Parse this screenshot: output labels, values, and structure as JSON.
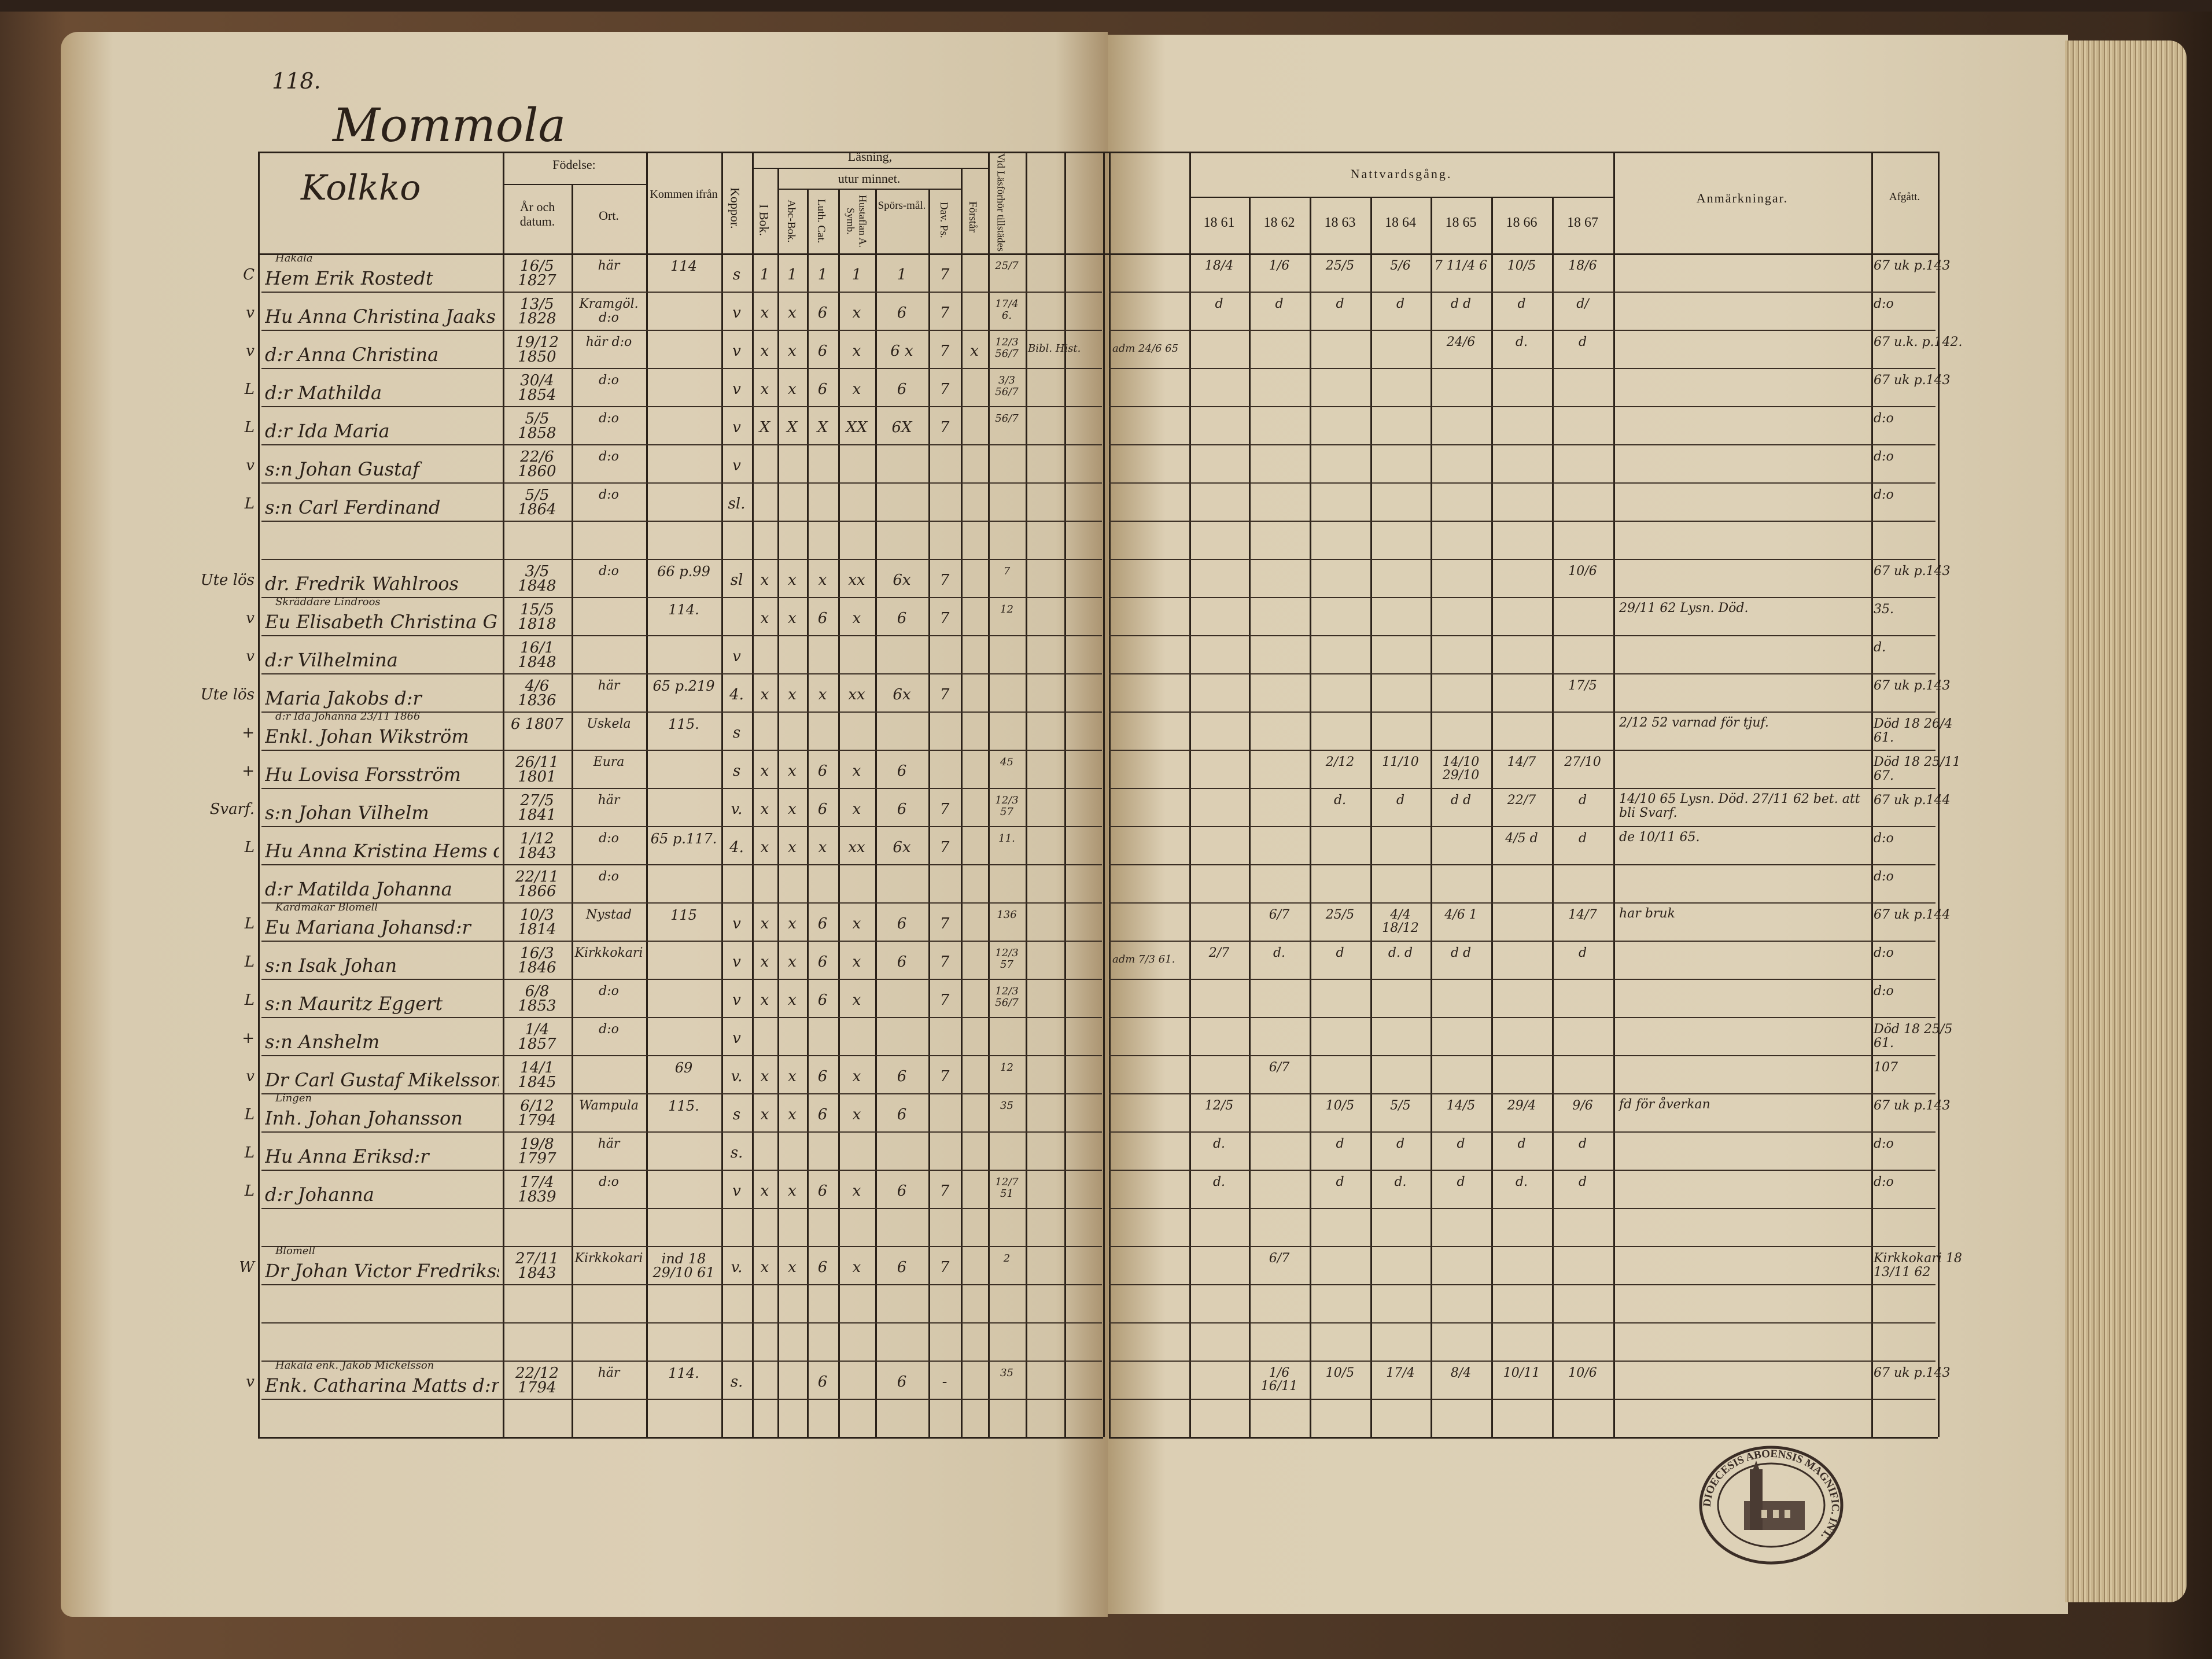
{
  "page_number": "118.",
  "village": "Mommola",
  "household": "Kolkko",
  "header": {
    "fodelse": "Födelse:",
    "ar": "År och datum.",
    "ort": "Ort.",
    "kommen": "Kommen ifrån",
    "koppor": "Koppor.",
    "lasning": "Läsning,",
    "utur": "utur minnet.",
    "ibok": "I Bok.",
    "abc": "Abc-Bok.",
    "luth": "Luth. Cat.",
    "hust": "Hustaflan A. Symb.",
    "spors": "Spörs-mål.",
    "dav": "Dav. Ps.",
    "forstar": "Förstår",
    "vid": "Vid Läsförhör tillstädes",
    "natt": "Nattvardsgång.",
    "years": [
      "18 61",
      "18 62",
      "18 63",
      "18 64",
      "18 65",
      "18 66",
      "18 67"
    ],
    "anm": "Anmärkningar.",
    "afg": "Afgått."
  },
  "rows": [
    {
      "margin": "C",
      "note": "Hakala",
      "name": "Hem Erik Rostedt",
      "born": "16/5 1827",
      "ort": "här",
      "from": "114",
      "r": [
        "s",
        "1",
        "1",
        "1",
        "1",
        "1",
        "7",
        "",
        "25/7"
      ],
      "extra": "",
      "adm": "",
      "comm": [
        "18/4",
        "1/6",
        "25/5",
        "5/6",
        "7 11/4 6",
        "10/5",
        "18/6"
      ],
      "anm": "",
      "afg": "67 uk p.143"
    },
    {
      "margin": "v",
      "note": "",
      "name": "Hu Anna Christina Jaaks",
      "born": "13/5 1828",
      "ort": "Kramgöl. d:o",
      "from": "",
      "r": [
        "v",
        "x",
        "x",
        "6",
        "x",
        "6",
        "7",
        "",
        "17/4 6."
      ],
      "extra": "",
      "adm": "",
      "comm": [
        "d",
        "d",
        "d",
        "d",
        "d d",
        "d",
        "d/"
      ],
      "anm": "",
      "afg": "d:o"
    },
    {
      "margin": "v",
      "note": "",
      "name": "d:r Anna Christina",
      "born": "19/12 1850",
      "ort": "här d:o",
      "from": "",
      "r": [
        "v",
        "x",
        "x",
        "6",
        "x",
        "6 x",
        "7",
        "x",
        "12/3 56/7"
      ],
      "extra": "Bibl. Hist.",
      "adm": "adm 24/6 65",
      "comm": [
        "",
        "",
        "",
        "",
        "24/6",
        "d.",
        "d"
      ],
      "anm": "",
      "afg": "67 u.k. p.142."
    },
    {
      "margin": "L",
      "note": "",
      "name": "d:r Mathilda",
      "born": "30/4 1854",
      "ort": "d:o",
      "from": "",
      "r": [
        "v",
        "x",
        "x",
        "6",
        "x",
        "6",
        "7",
        "",
        "3/3 56/7"
      ],
      "extra": "",
      "adm": "",
      "comm": [
        "",
        "",
        "",
        "",
        "",
        "",
        ""
      ],
      "anm": "",
      "afg": "67 uk p.143"
    },
    {
      "margin": "L",
      "note": "",
      "name": "d:r Ida Maria",
      "born": "5/5 1858",
      "ort": "d:o",
      "from": "",
      "r": [
        "v",
        "X",
        "X",
        "X",
        "XX",
        "6X",
        "7",
        "",
        "56/7"
      ],
      "extra": "",
      "adm": "",
      "comm": [
        "",
        "",
        "",
        "",
        "",
        "",
        ""
      ],
      "anm": "",
      "afg": "d:o"
    },
    {
      "margin": "v",
      "note": "",
      "name": "s:n Johan Gustaf",
      "born": "22/6 1860",
      "ort": "d:o",
      "from": "",
      "r": [
        "v",
        "",
        "",
        "",
        "",
        "",
        "",
        "",
        ""
      ],
      "extra": "",
      "adm": "",
      "comm": [
        "",
        "",
        "",
        "",
        "",
        "",
        ""
      ],
      "anm": "",
      "afg": "d:o"
    },
    {
      "margin": "L",
      "note": "",
      "name": "s:n Carl Ferdinand",
      "born": "5/5 1864",
      "ort": "d:o",
      "from": "",
      "r": [
        "sl.",
        "",
        "",
        "",
        "",
        "",
        "",
        "",
        ""
      ],
      "extra": "",
      "adm": "",
      "comm": [
        "",
        "",
        "",
        "",
        "",
        "",
        ""
      ],
      "anm": "",
      "afg": "d:o"
    },
    {
      "margin": "",
      "note": "",
      "name": "",
      "born": "",
      "ort": "",
      "from": "",
      "r": [
        "",
        "",
        "",
        "",
        "",
        "",
        "",
        "",
        ""
      ],
      "extra": "",
      "adm": "",
      "comm": [
        "",
        "",
        "",
        "",
        "",
        "",
        ""
      ],
      "anm": "",
      "afg": ""
    },
    {
      "margin": "Ute lös",
      "note": "",
      "name": "dr. Fredrik Wahlroos",
      "born": "3/5 1848",
      "ort": "d:o",
      "from": "66 p.99",
      "r": [
        "sl",
        "x",
        "x",
        "x",
        "xx",
        "6x",
        "7",
        "",
        "7"
      ],
      "extra": "",
      "adm": "",
      "comm": [
        "",
        "",
        "",
        "",
        "",
        "",
        "10/6"
      ],
      "anm": "",
      "afg": "67 uk p.143"
    },
    {
      "margin": "v",
      "note": "Skräddare Lindroos",
      "name": "Eu Elisabeth Christina Gust:dr",
      "born": "15/5 1818",
      "ort": "",
      "from": "114.",
      "r": [
        "",
        "x",
        "x",
        "6",
        "x",
        "6",
        "7",
        "",
        "12"
      ],
      "extra": "",
      "adm": "",
      "comm": [
        "",
        "",
        "",
        "",
        "",
        "",
        ""
      ],
      "anm": "29/11 62 Lysn. Död.",
      "afg": "35."
    },
    {
      "margin": "v",
      "note": "",
      "name": "d:r Vilhelmina",
      "born": "16/1 1848",
      "ort": "",
      "from": "",
      "r": [
        "v",
        "",
        "",
        "",
        "",
        "",
        "",
        "",
        ""
      ],
      "extra": "",
      "adm": "",
      "comm": [
        "",
        "",
        "",
        "",
        "",
        "",
        ""
      ],
      "anm": "",
      "afg": "d."
    },
    {
      "margin": "Ute lös",
      "note": "",
      "name": "Maria Jakobs d:r",
      "born": "4/6 1836",
      "ort": "här",
      "from": "65 p.219",
      "r": [
        "4.",
        "x",
        "x",
        "x",
        "xx",
        "6x",
        "7",
        "",
        ""
      ],
      "extra": "",
      "adm": "",
      "comm": [
        "",
        "",
        "",
        "",
        "",
        "",
        "17/5"
      ],
      "anm": "",
      "afg": "67 uk p.143"
    },
    {
      "margin": "+",
      "note": "d:r Ida Johanna 23/11 1866",
      "name": "Enkl. Johan Wikström",
      "born": "6 1807",
      "ort": "Uskela",
      "from": "115.",
      "r": [
        "s",
        "",
        "",
        "",
        "",
        "",
        "",
        "",
        ""
      ],
      "extra": "",
      "adm": "",
      "comm": [
        "",
        "",
        "",
        "",
        "",
        "",
        ""
      ],
      "anm": "2/12 52 varnad för tjuf.",
      "afg": "Död 18 26/4 61."
    },
    {
      "margin": "+",
      "note": "",
      "name": "Hu Lovisa Forsström",
      "born": "26/11 1801",
      "ort": "Eura",
      "from": "",
      "r": [
        "s",
        "x",
        "x",
        "6",
        "x",
        "6",
        "",
        "",
        "45"
      ],
      "extra": "",
      "adm": "",
      "comm": [
        "",
        "",
        "2/12",
        "11/10",
        "14/10 29/10",
        "14/7",
        "27/10"
      ],
      "anm": "",
      "afg": "Död 18 25/11 67."
    },
    {
      "margin": "Svarf.",
      "note": "",
      "name": "s:n Johan Vilhelm",
      "born": "27/5 1841",
      "ort": "här",
      "from": "",
      "r": [
        "v.",
        "x",
        "x",
        "6",
        "x",
        "6",
        "7",
        "",
        "12/3 57"
      ],
      "extra": "",
      "adm": "",
      "comm": [
        "",
        "",
        "d.",
        "d",
        "d d",
        "22/7",
        "d"
      ],
      "anm": "14/10 65 Lysn. Död. 27/11 62 bet. att bli Svarf.",
      "afg": "67 uk p.144"
    },
    {
      "margin": "L",
      "note": "",
      "name": "Hu Anna Kristina Hems d:r",
      "born": "1/12 1843",
      "ort": "d:o",
      "from": "65 p.117.",
      "r": [
        "4.",
        "x",
        "x",
        "x",
        "xx",
        "6x",
        "7",
        "",
        "11."
      ],
      "extra": "",
      "adm": "",
      "comm": [
        "",
        "",
        "",
        "",
        "",
        "4/5 d",
        "d"
      ],
      "anm": "de 10/11 65.",
      "afg": "d:o"
    },
    {
      "margin": "",
      "note": "",
      "name": "d:r Matilda Johanna",
      "born": "22/11 1866",
      "ort": "d:o",
      "from": "",
      "r": [
        "",
        "",
        "",
        "",
        "",
        "",
        "",
        "",
        ""
      ],
      "extra": "",
      "adm": "",
      "comm": [
        "",
        "",
        "",
        "",
        "",
        "",
        ""
      ],
      "anm": "",
      "afg": "d:o"
    },
    {
      "margin": "L",
      "note": "Kardmakar Blomell",
      "name": "Eu Mariana Johansd:r",
      "born": "10/3 1814",
      "ort": "Nystad",
      "from": "115",
      "r": [
        "v",
        "x",
        "x",
        "6",
        "x",
        "6",
        "7",
        "",
        "136"
      ],
      "extra": "",
      "adm": "",
      "comm": [
        "",
        "6/7",
        "25/5",
        "4/4 18/12",
        "4/6 1",
        "",
        "14/7"
      ],
      "anm": "har bruk",
      "afg": "67 uk p.144"
    },
    {
      "margin": "L",
      "note": "",
      "name": "s:n Isak Johan",
      "born": "16/3 1846",
      "ort": "Kirkkokari",
      "from": "",
      "r": [
        "v",
        "x",
        "x",
        "6",
        "x",
        "6",
        "7",
        "",
        "12/3 57"
      ],
      "extra": "",
      "adm": "adm 7/3 61.",
      "comm": [
        "2/7",
        "d.",
        "d",
        "d. d",
        "d d",
        "",
        "d"
      ],
      "anm": "",
      "afg": "d:o"
    },
    {
      "margin": "L",
      "note": "",
      "name": "s:n Mauritz Eggert",
      "born": "6/8 1853",
      "ort": "d:o",
      "from": "",
      "r": [
        "v",
        "x",
        "x",
        "6",
        "x",
        "",
        "7",
        "",
        "12/3 56/7"
      ],
      "extra": "",
      "adm": "",
      "comm": [
        "",
        "",
        "",
        "",
        "",
        "",
        ""
      ],
      "anm": "",
      "afg": "d:o"
    },
    {
      "margin": "+",
      "note": "",
      "name": "s:n Anshelm",
      "born": "1/4 1857",
      "ort": "d:o",
      "from": "",
      "r": [
        "v",
        "",
        "",
        "",
        "",
        "",
        "",
        "",
        ""
      ],
      "extra": "",
      "adm": "",
      "comm": [
        "",
        "",
        "",
        "",
        "",
        "",
        ""
      ],
      "anm": "",
      "afg": "Död 18 25/5 61."
    },
    {
      "margin": "v",
      "note": "",
      "name": "Dr Carl Gustaf Mikelsson",
      "born": "14/1 1845",
      "ort": "",
      "from": "69",
      "r": [
        "v.",
        "x",
        "x",
        "6",
        "x",
        "6",
        "7",
        "",
        "12"
      ],
      "extra": "",
      "adm": "",
      "comm": [
        "",
        "6/7",
        "",
        "",
        "",
        "",
        ""
      ],
      "anm": "",
      "afg": "107"
    },
    {
      "margin": "L",
      "note": "Lingen",
      "name": "Inh. Johan Johansson",
      "born": "6/12 1794",
      "ort": "Wampula",
      "from": "115.",
      "r": [
        "s",
        "x",
        "x",
        "6",
        "x",
        "6",
        "",
        "",
        "35"
      ],
      "extra": "",
      "adm": "",
      "comm": [
        "12/5",
        "",
        "10/5",
        "5/5",
        "14/5",
        "29/4",
        "9/6"
      ],
      "anm": "fd för åverkan",
      "afg": "67 uk p.143"
    },
    {
      "margin": "L",
      "note": "",
      "name": "Hu Anna Eriksd:r",
      "born": "19/8 1797",
      "ort": "här",
      "from": "",
      "r": [
        "s.",
        "",
        "",
        "",
        "",
        "",
        "",
        "",
        ""
      ],
      "extra": "",
      "adm": "",
      "comm": [
        "d.",
        "",
        "d",
        "d",
        "d",
        "d",
        "d"
      ],
      "anm": "",
      "afg": "d:o"
    },
    {
      "margin": "L",
      "note": "",
      "name": "d:r Johanna",
      "born": "17/4 1839",
      "ort": "d:o",
      "from": "",
      "r": [
        "v",
        "x",
        "x",
        "6",
        "x",
        "6",
        "7",
        "",
        "12/7 51"
      ],
      "extra": "",
      "adm": "",
      "comm": [
        "d.",
        "",
        "d",
        "d.",
        "d",
        "d.",
        "d"
      ],
      "anm": "",
      "afg": "d:o"
    },
    {
      "margin": "",
      "note": "",
      "name": "",
      "born": "",
      "ort": "",
      "from": "",
      "r": [
        "",
        "",
        "",
        "",
        "",
        "",
        "",
        "",
        ""
      ],
      "extra": "",
      "adm": "",
      "comm": [
        "",
        "",
        "",
        "",
        "",
        "",
        ""
      ],
      "anm": "",
      "afg": ""
    },
    {
      "margin": "W",
      "note": "Blomell",
      "name": "Dr Johan Victor Fredriksson",
      "born": "27/11 1843",
      "ort": "Kirkkokari",
      "from": "ind 18 29/10 61",
      "r": [
        "v.",
        "x",
        "x",
        "6",
        "x",
        "6",
        "7",
        "",
        "2"
      ],
      "extra": "",
      "adm": "",
      "comm": [
        "",
        "6/7",
        "",
        "",
        "",
        "",
        ""
      ],
      "anm": "",
      "afg": "Kirkkokari 18 13/11 62"
    },
    {
      "margin": "",
      "note": "",
      "name": "",
      "born": "",
      "ort": "",
      "from": "",
      "r": [
        "",
        "",
        "",
        "",
        "",
        "",
        "",
        "",
        ""
      ],
      "extra": "",
      "adm": "",
      "comm": [
        "",
        "",
        "",
        "",
        "",
        "",
        ""
      ],
      "anm": "",
      "afg": ""
    },
    {
      "margin": "",
      "note": "",
      "name": "",
      "born": "",
      "ort": "",
      "from": "",
      "r": [
        "",
        "",
        "",
        "",
        "",
        "",
        "",
        "",
        ""
      ],
      "extra": "",
      "adm": "",
      "comm": [
        "",
        "",
        "",
        "",
        "",
        "",
        ""
      ],
      "anm": "",
      "afg": ""
    },
    {
      "margin": "v",
      "note": "Hakala enk. Jakob Mickelsson",
      "name": "Enk. Catharina Matts d:r",
      "born": "22/12 1794",
      "ort": "här",
      "from": "114.",
      "r": [
        "s.",
        "",
        "",
        "6",
        "",
        "6",
        "-",
        "",
        "35"
      ],
      "extra": "",
      "adm": "",
      "comm": [
        "",
        "1/6 16/11",
        "10/5",
        "17/4",
        "8/4",
        "10/11",
        "10/6"
      ],
      "anm": "",
      "afg": "67 uk p.143"
    }
  ],
  "stamp_text": "DIOECESIS ABOENSIS MAGNIFIC. INT.",
  "colors": {
    "paper": "#dccfb5",
    "ink": "#2b2119",
    "cover": "#4a3424"
  }
}
